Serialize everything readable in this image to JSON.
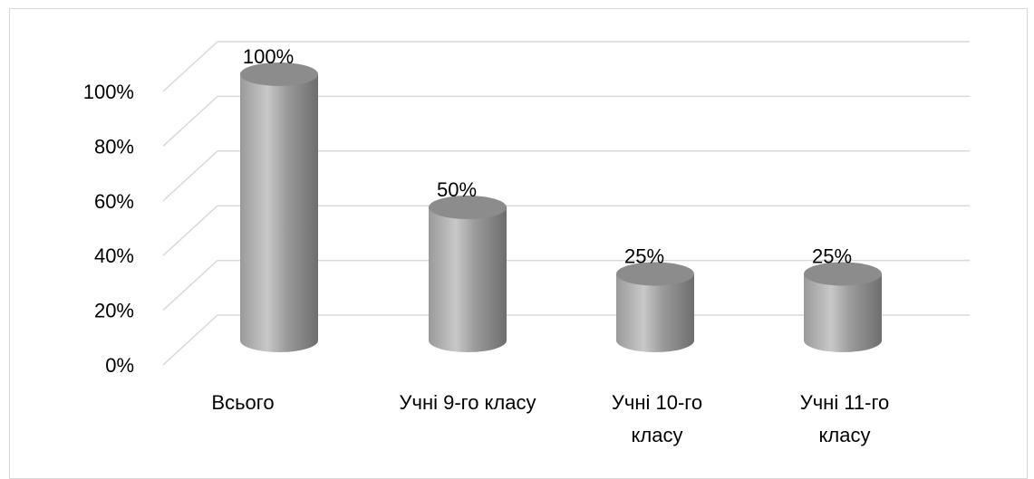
{
  "chart_data": {
    "type": "bar",
    "style": "3d-cylinder",
    "categories": [
      [
        "Всього"
      ],
      [
        "Учні 9-го класу"
      ],
      [
        "Учні 10-го",
        "класу"
      ],
      [
        "Учні 11-го",
        "класу"
      ]
    ],
    "values": [
      100,
      50,
      25,
      25
    ],
    "data_labels": [
      "100%",
      "50%",
      "25%",
      "25%"
    ],
    "y_ticks": [
      "0%",
      "20%",
      "40%",
      "60%",
      "80%",
      "100%"
    ],
    "ylim": [
      0,
      100
    ],
    "title": "",
    "xlabel": "",
    "ylabel": "",
    "grid": true,
    "legend": "none",
    "colors": {
      "bar_light": "#c8c8c8",
      "bar_mid": "#9a9a9a",
      "bar_dark": "#6e6e6e",
      "bar_top": "#8c8c8c",
      "grid": "#d9d9d9"
    }
  }
}
